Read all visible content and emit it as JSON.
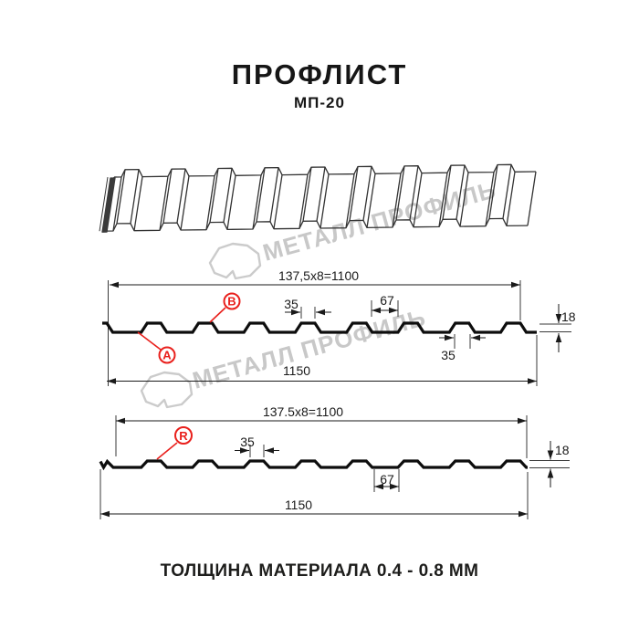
{
  "header": {
    "title": "ПРОФЛИСТ",
    "subtitle": "МП-20"
  },
  "footer": {
    "text": "ТОЛЩИНА МАТЕРИАЛА 0.4 - 0.8 ММ"
  },
  "watermark": {
    "text": "МЕТАЛЛ ПРОФИЛЬ"
  },
  "colors": {
    "accent_red": "#e9201c",
    "line": "#1a1a1a",
    "watermark": "#c8c8c8"
  },
  "profile_top": {
    "dims": {
      "working": "137,5x8=1100",
      "total": "1150",
      "rib_top": "35",
      "valley": "67",
      "height": "18",
      "rib_bottom": "35"
    },
    "labels": {
      "a": "A",
      "b": "B"
    }
  },
  "profile_bottom": {
    "dims": {
      "working": "137.5x8=1100",
      "total": "1150",
      "rib_top": "35",
      "valley": "67",
      "height": "18"
    },
    "labels": {
      "r": "R"
    }
  }
}
